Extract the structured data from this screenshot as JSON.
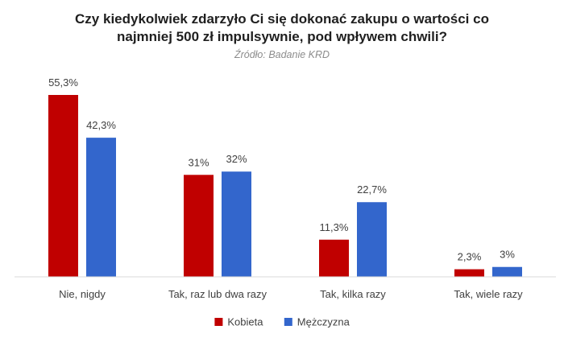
{
  "chart_data": {
    "type": "bar",
    "title_lines": [
      "Czy kiedykolwiek zdarzyło Ci się dokonać zakupu  o wartości co",
      "najmniej 500 zł impulsywnie, pod wpływem chwili?"
    ],
    "subtitle": "Źródło: Badanie KRD",
    "categories": [
      "Nie, nigdy",
      "Tak, raz lub dwa razy",
      "Tak, kilka razy",
      "Tak, wiele razy"
    ],
    "series": [
      {
        "name": "Kobieta",
        "color": "#c00000",
        "values": [
          55.3,
          31,
          11.3,
          2.3
        ],
        "labels": [
          "55,3%",
          "31%",
          "11,3%",
          "2,3%"
        ]
      },
      {
        "name": "Mężczyzna",
        "color": "#3366cc",
        "values": [
          42.3,
          32,
          22.7,
          3
        ],
        "labels": [
          "42,3%",
          "32%",
          "22,7%",
          "3%"
        ]
      }
    ],
    "ylim": [
      0,
      55.3
    ],
    "grid": false,
    "legend_position": "bottom"
  }
}
